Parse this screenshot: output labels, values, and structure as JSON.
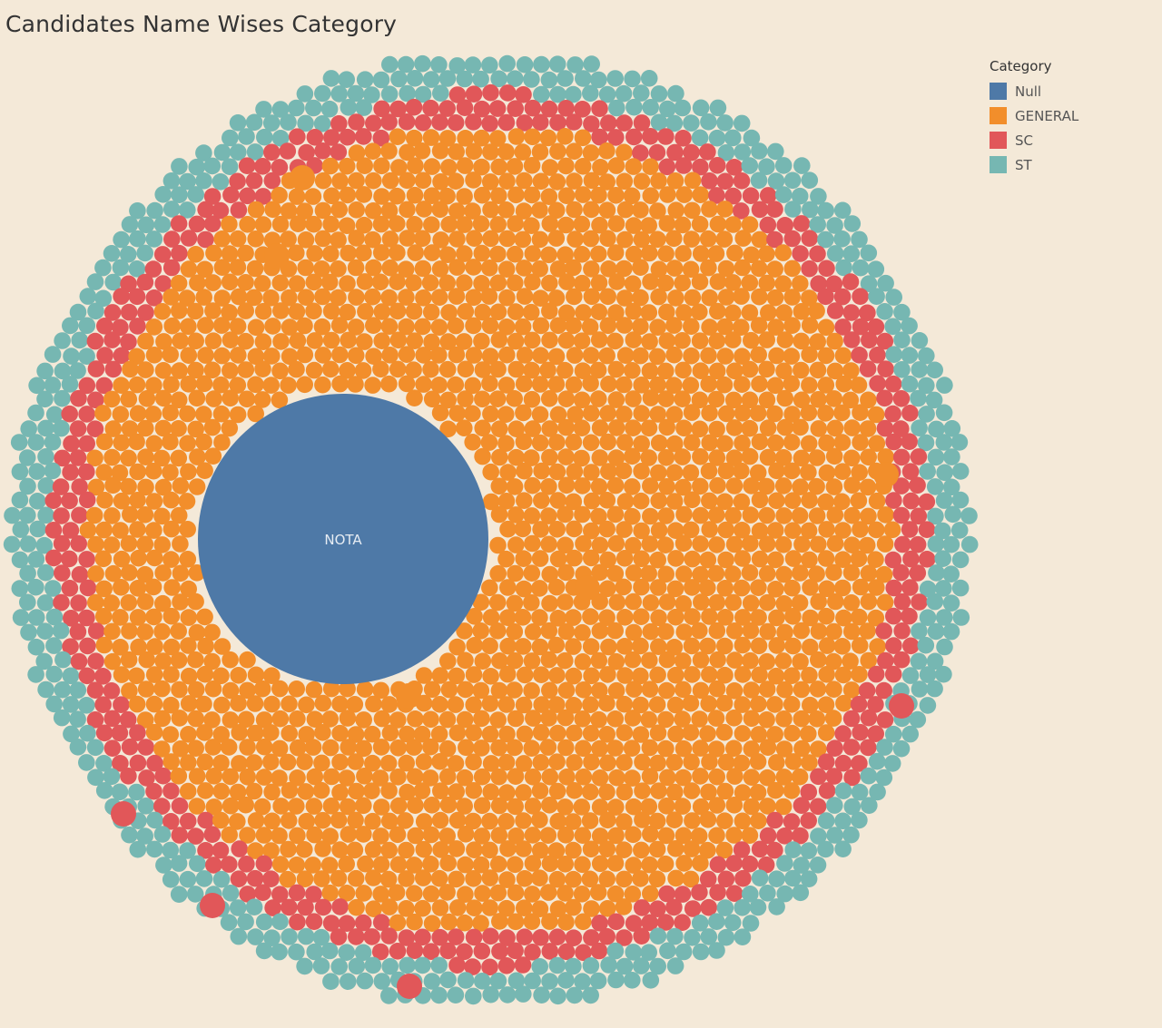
{
  "title": "Candidates Name Wises Category",
  "legend": {
    "title": "Category",
    "items": [
      {
        "label": "Null",
        "color": "#4e79a7"
      },
      {
        "label": "GENERAL",
        "color": "#f28e2b"
      },
      {
        "label": "SC",
        "color": "#e15759"
      },
      {
        "label": "ST",
        "color": "#76b7b2"
      }
    ]
  },
  "chart_data": {
    "type": "packed-bubble",
    "legend_position": "top-right",
    "categories": [
      "Null",
      "GENERAL",
      "SC",
      "ST"
    ],
    "estimated_bubble_counts": {
      "Null": 1,
      "GENERAL": 1850,
      "SC": 330,
      "ST": 280
    },
    "labelled_bubbles": [
      {
        "label": "NOTA",
        "category": "Null"
      }
    ]
  }
}
